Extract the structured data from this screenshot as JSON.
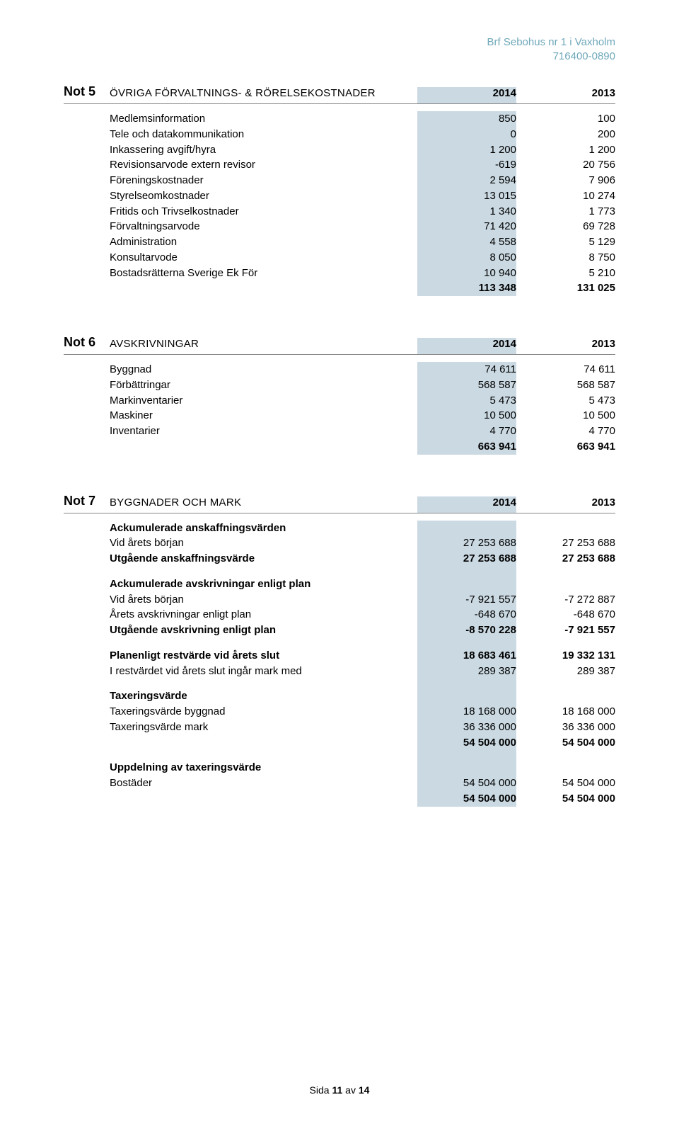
{
  "header": {
    "org_name": "Brf Sebohus nr 1 i Vaxholm",
    "org_number": "716400-0890"
  },
  "col_highlight_bg": "#cad9e2",
  "notes": [
    {
      "label": "Not 5",
      "title": "ÖVRIGA FÖRVALTNINGS- & RÖRELSEKOSTNADER",
      "col1": "2014",
      "col2": "2013",
      "rows": [
        {
          "text": "Medlemsinformation",
          "v1": "850",
          "v2": "100"
        },
        {
          "text": "Tele och datakommunikation",
          "v1": "0",
          "v2": "200"
        },
        {
          "text": "Inkassering avgift/hyra",
          "v1": "1 200",
          "v2": "1 200"
        },
        {
          "text": "Revisionsarvode extern revisor",
          "v1": "-619",
          "v2": "20 756"
        },
        {
          "text": "Föreningskostnader",
          "v1": "2 594",
          "v2": "7 906"
        },
        {
          "text": "Styrelseomkostnader",
          "v1": "13 015",
          "v2": "10 274"
        },
        {
          "text": "Fritids och Trivselkostnader",
          "v1": "1 340",
          "v2": "1 773"
        },
        {
          "text": "Förvaltningsarvode",
          "v1": "71 420",
          "v2": "69 728"
        },
        {
          "text": "Administration",
          "v1": "4 558",
          "v2": "5 129"
        },
        {
          "text": "Konsultarvode",
          "v1": "8 050",
          "v2": "8 750"
        },
        {
          "text": "Bostadsrätterna Sverige Ek För",
          "v1": "10 940",
          "v2": "5 210"
        },
        {
          "text": "",
          "v1": "113 348",
          "v2": "131 025",
          "bold": true
        }
      ]
    },
    {
      "label": "Not 6",
      "title": "AVSKRIVNINGAR",
      "col1": "2014",
      "col2": "2013",
      "rows": [
        {
          "text": "Byggnad",
          "v1": "74 611",
          "v2": "74 611"
        },
        {
          "text": "Förbättringar",
          "v1": "568 587",
          "v2": "568 587"
        },
        {
          "text": "Markinventarier",
          "v1": "5 473",
          "v2": "5 473"
        },
        {
          "text": "Maskiner",
          "v1": "10 500",
          "v2": "10 500"
        },
        {
          "text": "Inventarier",
          "v1": "4 770",
          "v2": "4 770"
        },
        {
          "text": "",
          "v1": "663 941",
          "v2": "663 941",
          "bold": true
        }
      ]
    },
    {
      "label": "Not 7",
      "title": "BYGGNADER OCH MARK",
      "col1": "2014",
      "col2": "2013",
      "rows": [
        {
          "text": "Ackumulerade anskaffningsvärden",
          "v1": "",
          "v2": "",
          "bold": true
        },
        {
          "text": "Vid årets början",
          "v1": "27 253 688",
          "v2": "27 253 688"
        },
        {
          "text": "Utgående anskaffningsvärde",
          "v1": "27 253 688",
          "v2": "27 253 688",
          "bold": true
        },
        {
          "spacer": true
        },
        {
          "text": "Ackumulerade avskrivningar enligt plan",
          "v1": "",
          "v2": "",
          "bold": true
        },
        {
          "text": "Vid årets början",
          "v1": "-7 921 557",
          "v2": "-7 272 887"
        },
        {
          "text": "Årets avskrivningar enligt plan",
          "v1": "-648 670",
          "v2": "-648 670"
        },
        {
          "text": "Utgående avskrivning enligt plan",
          "v1": "-8 570 228",
          "v2": "-7 921 557",
          "bold": true
        },
        {
          "spacer": true
        },
        {
          "text": "Planenligt restvärde vid årets slut",
          "v1": "18 683 461",
          "v2": "19 332 131",
          "bold": true
        },
        {
          "text": "I restvärdet vid årets slut ingår mark med",
          "v1": "289 387",
          "v2": "289 387"
        },
        {
          "spacer": true
        },
        {
          "text": "Taxeringsvärde",
          "v1": "",
          "v2": "",
          "bold": true
        },
        {
          "text": "Taxeringsvärde byggnad",
          "v1": "18 168 000",
          "v2": "18 168 000"
        },
        {
          "text": "Taxeringsvärde mark",
          "v1": "36 336 000",
          "v2": "36 336 000"
        },
        {
          "text": "",
          "v1": "54 504 000",
          "v2": "54 504 000",
          "bold": true
        },
        {
          "spacer": true
        },
        {
          "text": "Uppdelning av taxeringsvärde",
          "v1": "",
          "v2": "",
          "bold": true
        },
        {
          "text": "Bostäder",
          "v1": "54 504 000",
          "v2": "54 504 000"
        },
        {
          "text": "",
          "v1": "54 504 000",
          "v2": "54 504 000",
          "bold": true
        }
      ]
    }
  ],
  "footer": {
    "prefix": "Sida ",
    "page_num": "11",
    "middle": " av ",
    "total": "14"
  }
}
